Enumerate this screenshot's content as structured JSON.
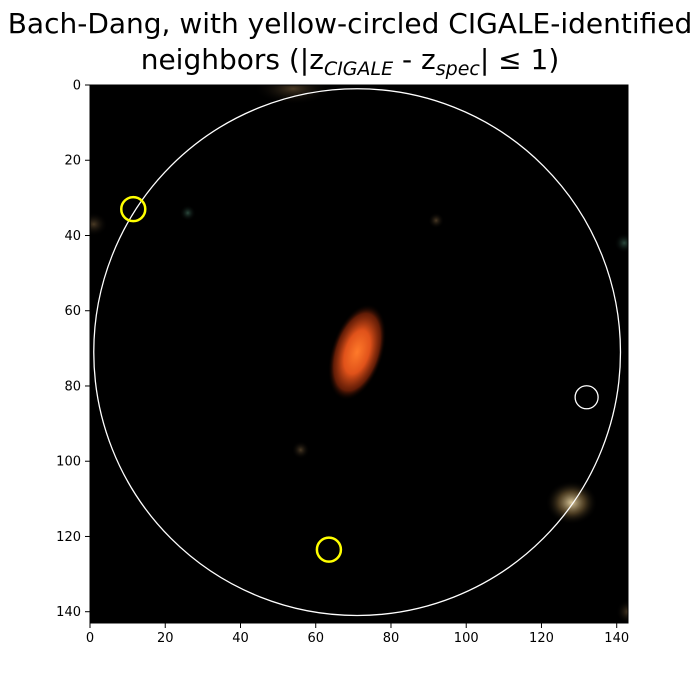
{
  "title": {
    "line1": "Bach-Dang, with yellow-circled CIGALE-identified",
    "line2_pre": "neighbors (|z",
    "sub1": "CIGALE",
    "mid": " - z",
    "sub2": "spec",
    "line2_post": "| ≤ 1)"
  },
  "colors": {
    "background": "#000000",
    "galaxy": "#e0521a",
    "neighbor_circle": "#ffff00",
    "other_circle": "#ffffff",
    "search_circle": "#ffffff"
  },
  "axes": {
    "xlim": [
      0,
      143
    ],
    "ylim": [
      143,
      0
    ],
    "xticks": [
      "0",
      "20",
      "40",
      "60",
      "80",
      "100",
      "120",
      "140"
    ],
    "yticks": [
      "0",
      "20",
      "40",
      "60",
      "80",
      "100",
      "120",
      "140"
    ]
  },
  "search_region": {
    "center": [
      71,
      71
    ],
    "radius": 70
  },
  "main_galaxy": {
    "center": [
      71,
      71
    ],
    "angle": 18
  },
  "neighbors_yellow": [
    {
      "x": 11.5,
      "y": 33
    },
    {
      "x": 63.5,
      "y": 123.5
    }
  ],
  "neighbors_white": [
    {
      "x": 132,
      "y": 83
    }
  ]
}
